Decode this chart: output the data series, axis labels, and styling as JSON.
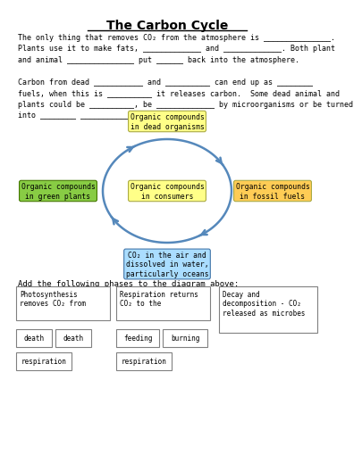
{
  "title": "The Carbon Cycle",
  "lines1": [
    "The only thing that removes CO₂ from the atmosphere is _______________.",
    "Plants use it to make fats, _____________ and _____________. Both plant",
    "and animal _______________ put ______ back into the atmosphere."
  ],
  "lines2": [
    "Carbon from dead ___________ and __________ can end up as ________",
    "fuels, when this is __________ it releases carbon.  Some dead animal and",
    "plants could be __________, be _____________ by microorganisms or be turned",
    "into ________ _______________ by humans."
  ],
  "instruction": "Add the following phases to the diagram above:",
  "top_label": "Organic compounds\nin dead organisms",
  "left_label": "Organic compounds\nin green plants",
  "bottom_label": "CO₂ in the air and\ndissolved in water,\nparticularly oceans",
  "right_label": "Organic compounds\nin fossil fuels",
  "center_label": "Organic compounds\nin consumers",
  "top_color": "#ffff88",
  "left_color": "#88cc44",
  "bottom_color": "#aaddff",
  "right_color": "#ffcc55",
  "center_color": "#ffff88",
  "arrow_color": "#5588bb",
  "big_boxes": [
    {
      "text": "Photosynthesis\nremoves CO₂ from"
    },
    {
      "text": "Respiration returns\nCO₂ to the"
    },
    {
      "text": "Decay and\ndecomposition - CO₂\nreleased as microbes"
    }
  ],
  "small_boxes_row1": [
    "death",
    "death",
    "feeding",
    "burning"
  ],
  "small_boxes_row2": [
    "respiration",
    "respiration"
  ]
}
